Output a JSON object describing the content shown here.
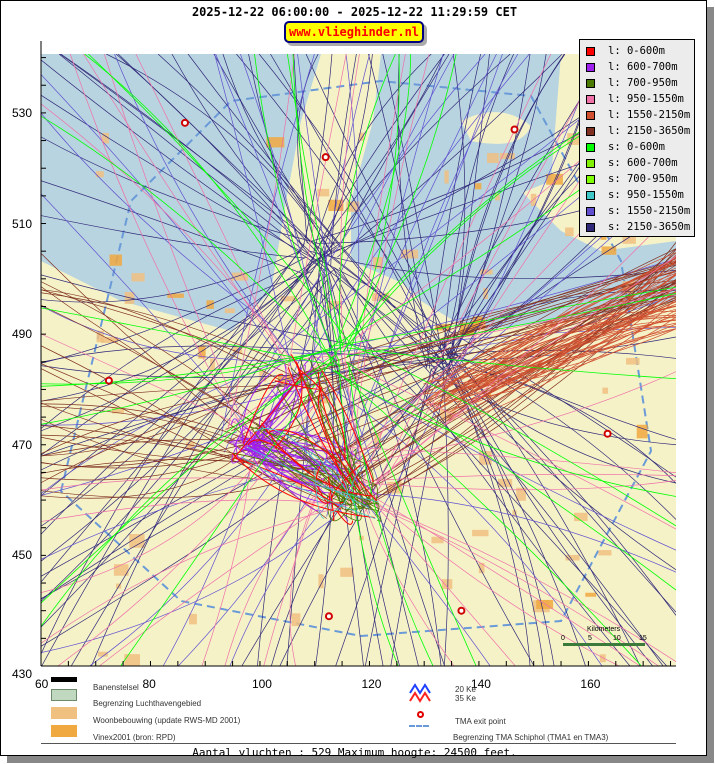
{
  "header": {
    "title": "2025-12-22 06:00:00 - 2025-12-22 11:29:59 CET",
    "site": "www.vlieghinder.nl"
  },
  "legend": [
    {
      "label": "l: 0-600m",
      "color": "#ff0000"
    },
    {
      "label": "l: 600-700m",
      "color": "#a020f0"
    },
    {
      "label": "l: 700-950m",
      "color": "#4a7a00"
    },
    {
      "label": "l: 950-1550m",
      "color": "#f070a8"
    },
    {
      "label": "l: 1550-2150m",
      "color": "#d05030"
    },
    {
      "label": "l: 2150-3650m",
      "color": "#803020"
    },
    {
      "label": "s: 0-600m",
      "color": "#00ff00"
    },
    {
      "label": "s: 600-700m",
      "color": "#80f000"
    },
    {
      "label": "s: 700-950m",
      "color": "#80ff00"
    },
    {
      "label": "s: 950-1550m",
      "color": "#40c8c8"
    },
    {
      "label": "s: 1550-2150m",
      "color": "#6050d0"
    },
    {
      "label": "s: 2150-3650m",
      "color": "#302878"
    }
  ],
  "axes": {
    "x_ticks": [
      "60",
      "80",
      "100",
      "120",
      "140",
      "160"
    ],
    "y_ticks": [
      "430",
      "450",
      "470",
      "490",
      "510",
      "530"
    ],
    "xlim": [
      60,
      176
    ],
    "ylim": [
      430,
      543
    ]
  },
  "scale_bar": {
    "title": "Kilometers",
    "labels": [
      "0",
      "5",
      "10",
      "15"
    ]
  },
  "exit_points": [
    [
      86.3,
      528.2
    ],
    [
      112,
      522
    ],
    [
      146.5,
      527
    ],
    [
      72.4,
      481.6
    ],
    [
      163.5,
      472
    ],
    [
      112.6,
      439
    ],
    [
      136.8,
      440
    ]
  ],
  "map_legend": {
    "runways": "Banenstelsel",
    "airport": "Begrenzing Luchthavengebied",
    "housing": "Woonbebouwing (update RWS-MD 2001)",
    "vinex": "Vinex2001 (bron: RPD)",
    "ke20": "20 Ke",
    "ke35": "35 Ke",
    "exit": "TMA exit point",
    "tma": "Begrenzing TMA Schiphol  (TMA1 en TMA3)"
  },
  "footer": "Aantal vluchten : 529 Maximum hoogte: 24500 feet."
}
